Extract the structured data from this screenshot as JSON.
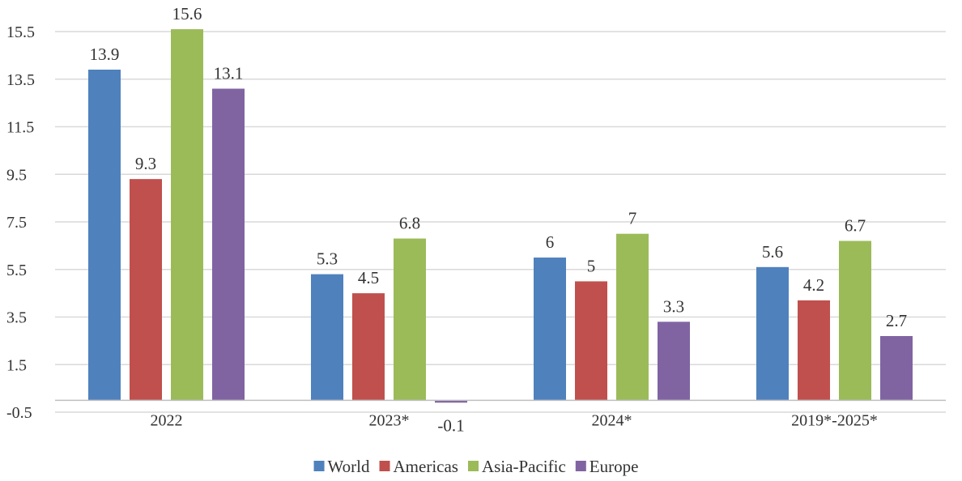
{
  "chart_data": {
    "type": "bar",
    "categories": [
      "2022",
      "2023*",
      "2024*",
      "2019*-2025*"
    ],
    "series": [
      {
        "name": "World",
        "color": "#4F81BD",
        "values": [
          13.9,
          5.3,
          6,
          5.6
        ]
      },
      {
        "name": "Americas",
        "color": "#C0504D",
        "values": [
          9.3,
          4.5,
          5,
          4.2
        ]
      },
      {
        "name": "Asia-Pacific",
        "color": "#9BBB59",
        "values": [
          15.6,
          6.8,
          7,
          6.7
        ]
      },
      {
        "name": "Europe",
        "color": "#8064A2",
        "values": [
          13.1,
          -0.1,
          3.3,
          2.7
        ]
      }
    ],
    "ylim": [
      -0.5,
      15.5
    ],
    "yticks": [
      -0.5,
      1.5,
      3.5,
      5.5,
      7.5,
      9.5,
      11.5,
      13.5,
      15.5
    ],
    "grid": true,
    "legend_position": "bottom"
  }
}
